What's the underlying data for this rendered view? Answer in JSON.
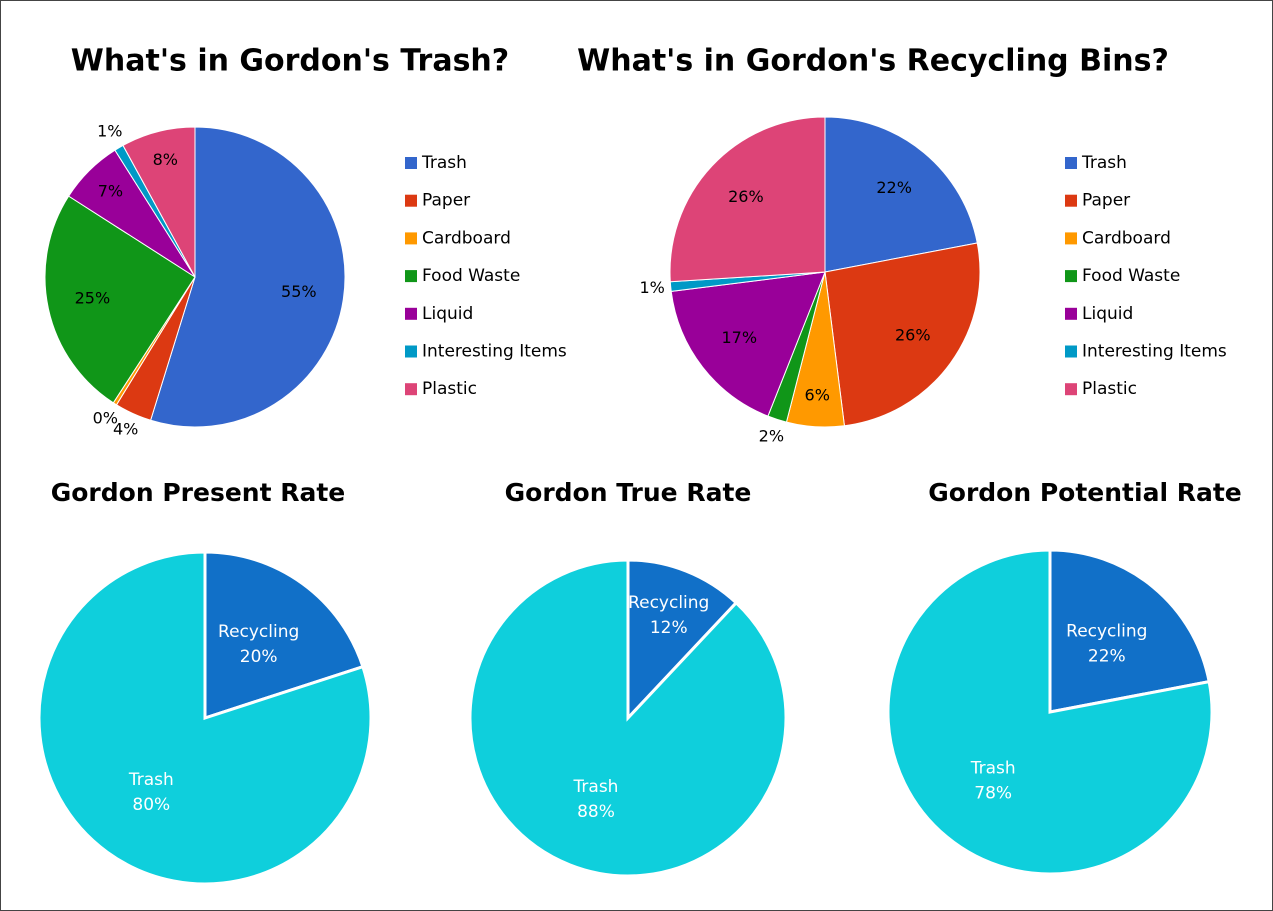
{
  "chart_data": [
    {
      "type": "pie",
      "title": "What's in Gordon's Trash?",
      "categories": [
        "Trash",
        "Paper",
        "Cardboard",
        "Food Waste",
        "Liquid",
        "Interesting Items",
        "Plastic"
      ],
      "values": [
        55,
        4,
        0.4,
        25,
        7,
        1,
        8
      ],
      "value_labels": [
        "55%",
        "4%",
        "0%",
        "25%",
        "7%",
        "1%",
        "8%"
      ],
      "colors": [
        "#3366cc",
        "#dc3912",
        "#ff9900",
        "#109618",
        "#990099",
        "#0099c6",
        "#dd4477"
      ],
      "legend": true
    },
    {
      "type": "pie",
      "title": "What's in Gordon's Recycling Bins?",
      "categories": [
        "Trash",
        "Paper",
        "Cardboard",
        "Food Waste",
        "Liquid",
        "Interesting Items",
        "Plastic"
      ],
      "values": [
        22,
        26,
        6,
        2,
        17,
        1,
        26
      ],
      "value_labels": [
        "22%",
        "26%",
        "6%",
        "2%",
        "17%",
        "1%",
        "26%"
      ],
      "colors": [
        "#3366cc",
        "#dc3912",
        "#ff9900",
        "#109618",
        "#990099",
        "#0099c6",
        "#dd4477"
      ],
      "legend": true
    },
    {
      "type": "pie",
      "title": "Gordon Present Rate",
      "categories": [
        "Recycling",
        "Trash"
      ],
      "values": [
        20,
        80
      ],
      "value_labels": [
        "20%",
        "80%"
      ],
      "colors": [
        "#1170c8",
        "#0fcfdc"
      ],
      "legend": false
    },
    {
      "type": "pie",
      "title": "Gordon True Rate",
      "categories": [
        "Recycling",
        "Trash"
      ],
      "values": [
        12,
        88
      ],
      "value_labels": [
        "12%",
        "88%"
      ],
      "colors": [
        "#1170c8",
        "#0fcfdc"
      ],
      "legend": false
    },
    {
      "type": "pie",
      "title": "Gordon Potential Rate",
      "categories": [
        "Recycling",
        "Trash"
      ],
      "values": [
        22,
        78
      ],
      "value_labels": [
        "22%",
        "78%"
      ],
      "colors": [
        "#1170c8",
        "#0fcfdc"
      ],
      "legend": false
    }
  ]
}
